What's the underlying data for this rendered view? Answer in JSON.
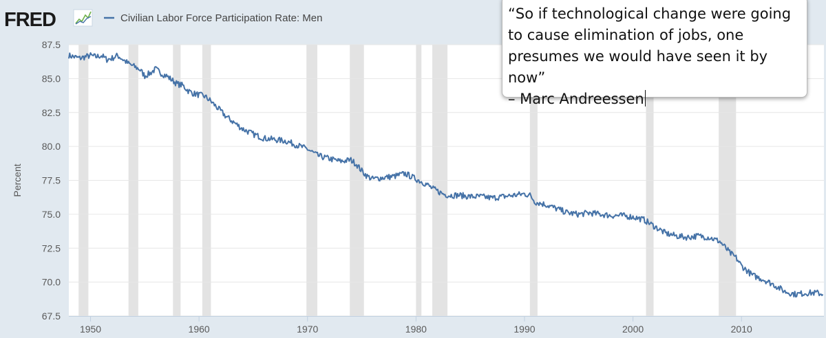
{
  "brand": {
    "name": "FRED",
    "logo_icon": "line-graph-icon"
  },
  "legend": {
    "label": "Civilian Labor Force Participation Rate: Men",
    "color": "#4572a7"
  },
  "quote": {
    "lines": [
      "“So if technological change were going",
      "to cause elimination of jobs, one",
      "presumes we would have seen it by now”",
      "– Marc Andreessen"
    ]
  },
  "colors": {
    "plot_bg": "#ffffff",
    "page_bg": "#e1e9f0",
    "recession": "#e3e3e3",
    "line": "#4572a7",
    "grid": "#e6e6e6"
  },
  "chart_data": {
    "type": "line",
    "ylabel": "Percent",
    "xlabel": "",
    "xlim": [
      1948.0,
      2017.6
    ],
    "ylim": [
      67.5,
      87.5
    ],
    "yticks": [
      "87.5",
      "85.0",
      "82.5",
      "80.0",
      "77.5",
      "75.0",
      "72.5",
      "70.0",
      "67.5"
    ],
    "xticks": [
      "1950",
      "1960",
      "1970",
      "1980",
      "1990",
      "2000",
      "2010"
    ],
    "recessions": [
      [
        1948.9,
        1949.8
      ],
      [
        1953.5,
        1954.4
      ],
      [
        1957.6,
        1958.3
      ],
      [
        1960.3,
        1961.1
      ],
      [
        1969.9,
        1970.9
      ],
      [
        1973.9,
        1975.2
      ],
      [
        1980.0,
        1980.5
      ],
      [
        1981.5,
        1982.9
      ],
      [
        1990.5,
        1991.2
      ],
      [
        2001.2,
        2001.9
      ],
      [
        2007.9,
        2009.5
      ]
    ],
    "series": [
      {
        "x": [
          1948.0,
          1948.5,
          1949.0,
          1949.5,
          1950.0,
          1950.5,
          1951.0,
          1951.5,
          1952.0,
          1952.5,
          1953.0,
          1953.5,
          1954.0,
          1954.5,
          1955.0,
          1955.5,
          1956.0,
          1956.5,
          1957.0,
          1957.5,
          1958.0,
          1958.5,
          1959.0,
          1959.5,
          1960.0,
          1960.5,
          1961.0,
          1961.5,
          1962.0,
          1962.5,
          1963.0,
          1963.5,
          1964.0,
          1964.5,
          1965.0,
          1966.0,
          1967.0,
          1968.0,
          1969.0,
          1970.0,
          1971.0,
          1972.0,
          1973.0,
          1974.0,
          1974.5,
          1975.0,
          1975.5,
          1976.0,
          1977.0,
          1978.0,
          1979.0,
          1980.0,
          1981.0,
          1981.5,
          1982.0,
          1982.5,
          1983.0,
          1984.0,
          1985.0,
          1986.0,
          1987.0,
          1988.0,
          1989.0,
          1990.0,
          1990.5,
          1991.0,
          1992.0,
          1993.0,
          1994.0,
          1995.0,
          1996.0,
          1997.0,
          1998.0,
          1999.0,
          2000.0,
          2001.0,
          2002.0,
          2003.0,
          2004.0,
          2005.0,
          2006.0,
          2007.0,
          2008.0,
          2009.0,
          2009.5,
          2010.0,
          2011.0,
          2012.0,
          2013.0,
          2014.0,
          2015.0,
          2016.0,
          2017.0,
          2017.5
        ],
        "values": [
          86.7,
          86.6,
          86.5,
          86.6,
          86.7,
          86.6,
          86.7,
          86.4,
          86.5,
          86.7,
          86.4,
          86.1,
          85.9,
          85.7,
          85.2,
          85.4,
          85.7,
          85.4,
          85.2,
          84.9,
          84.6,
          84.5,
          84.1,
          83.9,
          83.8,
          83.7,
          83.4,
          83.0,
          82.6,
          82.2,
          81.9,
          81.6,
          81.3,
          81.1,
          80.9,
          80.6,
          80.5,
          80.4,
          80.1,
          79.8,
          79.3,
          79.1,
          78.9,
          79.0,
          78.7,
          78.2,
          77.8,
          77.6,
          77.7,
          77.8,
          78.0,
          77.6,
          77.2,
          76.9,
          76.7,
          76.5,
          76.4,
          76.4,
          76.3,
          76.3,
          76.2,
          76.3,
          76.4,
          76.5,
          76.4,
          75.9,
          75.7,
          75.4,
          75.1,
          75.0,
          75.1,
          75.0,
          74.9,
          74.9,
          74.8,
          74.6,
          74.1,
          73.6,
          73.4,
          73.3,
          73.4,
          73.3,
          73.0,
          72.1,
          71.8,
          71.2,
          70.5,
          70.2,
          69.8,
          69.3,
          69.1,
          69.2,
          69.2,
          69.1
        ]
      }
    ]
  }
}
